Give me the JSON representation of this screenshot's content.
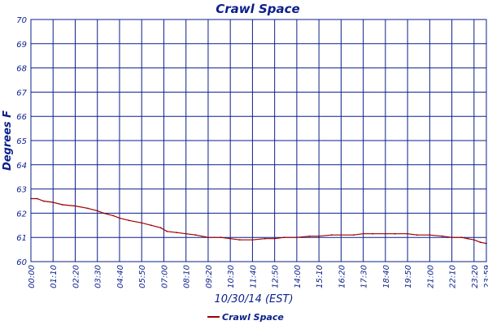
{
  "chart_data": {
    "type": "line",
    "title": "Crawl Space",
    "xlabel": "10/30/14 (EST)",
    "ylabel": "Degrees F",
    "ylim": [
      60,
      70
    ],
    "yticks": [
      60,
      61,
      62,
      63,
      64,
      65,
      66,
      67,
      68,
      69,
      70
    ],
    "xlim": [
      "00:00",
      "23:59"
    ],
    "xtick_labels": [
      "00:00",
      "01:10",
      "02:20",
      "03:30",
      "04:40",
      "05:50",
      "07:00",
      "08:10",
      "09:20",
      "10:30",
      "11:40",
      "12:50",
      "14:00",
      "15:10",
      "16:20",
      "17:30",
      "18:40",
      "19:50",
      "21:00",
      "22:10",
      "23:20",
      "23:59"
    ],
    "grid": true,
    "legend_position": "bottom-center",
    "colors": {
      "axis": "#0b1f8a",
      "grid": "#0b1f8a",
      "series": "#9b0000",
      "text": "#0b1f8a"
    },
    "series": [
      {
        "name": "Crawl Space",
        "x": [
          "00:00",
          "00:20",
          "00:40",
          "01:10",
          "01:40",
          "02:20",
          "03:00",
          "03:30",
          "03:50",
          "04:20",
          "04:40",
          "05:10",
          "05:50",
          "06:20",
          "06:50",
          "07:10",
          "07:40",
          "08:10",
          "08:40",
          "09:20",
          "10:00",
          "10:30",
          "11:00",
          "11:40",
          "12:20",
          "12:50",
          "13:20",
          "14:00",
          "14:40",
          "15:10",
          "15:50",
          "16:20",
          "17:00",
          "17:30",
          "18:00",
          "18:40",
          "19:10",
          "19:50",
          "20:20",
          "21:00",
          "21:40",
          "22:10",
          "22:40",
          "23:00",
          "23:20",
          "23:40",
          "23:59"
        ],
        "values": [
          62.6,
          62.6,
          62.5,
          62.45,
          62.35,
          62.3,
          62.2,
          62.1,
          62.0,
          61.9,
          61.8,
          61.7,
          61.6,
          61.5,
          61.4,
          61.25,
          61.2,
          61.15,
          61.1,
          61.0,
          61.0,
          60.95,
          60.9,
          60.9,
          60.95,
          60.95,
          61.0,
          61.0,
          61.05,
          61.05,
          61.1,
          61.1,
          61.1,
          61.15,
          61.15,
          61.15,
          61.15,
          61.15,
          61.1,
          61.1,
          61.05,
          61.0,
          61.0,
          60.95,
          60.9,
          60.8,
          60.75
        ]
      }
    ]
  }
}
